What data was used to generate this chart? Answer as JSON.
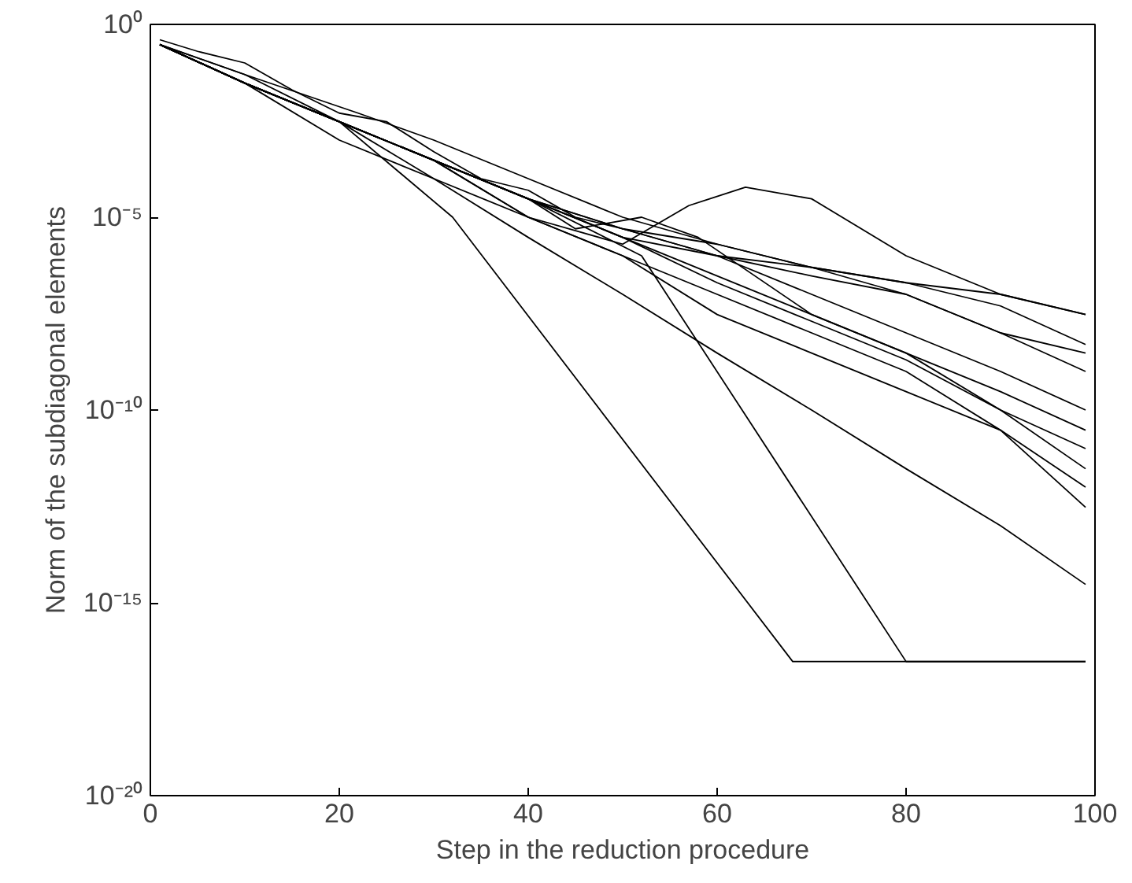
{
  "chart_data": {
    "type": "line",
    "xlabel": "Step in the reduction procedure",
    "ylabel": "Norm of the subdiagonal elements",
    "log": "y",
    "grid": false,
    "marker": "none",
    "line_style": "solid",
    "xlim": [
      0,
      100
    ],
    "xticks": [
      0,
      20,
      40,
      60,
      80,
      100
    ],
    "ylim": [
      1e-20,
      1
    ],
    "yticks": [
      {
        "value": 1e-20,
        "label": "10⁻²⁰"
      },
      {
        "value": 1e-15,
        "label": "10⁻¹⁵"
      },
      {
        "value": 1e-10,
        "label": "10⁻¹⁰"
      },
      {
        "value": 1e-05,
        "label": "10⁻⁵"
      },
      {
        "value": 1,
        "label": "10⁰"
      }
    ],
    "x": [
      1,
      10,
      20,
      30,
      40,
      50,
      60,
      70,
      80,
      90,
      99
    ],
    "series": [
      {
        "color": "#000000",
        "values": [
          0.3,
          0.03,
          0.003,
          0.0003,
          3e-05,
          3e-06,
          3e-07,
          3e-08,
          3e-09,
          1e-10,
          1e-11
        ]
      },
      {
        "color": "#000000",
        "values": [
          0.3,
          0.03,
          0.003,
          0.0003,
          1e-05,
          1e-06,
          1e-07,
          1e-08,
          1e-09,
          3e-11,
          1e-12
        ]
      },
      {
        "color": "#000000",
        "values": [
          0.3,
          0.03,
          0.003,
          0.0001,
          1e-05,
          1e-06,
          3e-08,
          3e-09,
          3e-10,
          3e-11,
          3e-13
        ]
      },
      {
        "color": "#000000",
        "values": [
          0.3,
          0.03,
          0.001,
          0.0001,
          3e-06,
          1e-07,
          3e-09,
          1e-10,
          3e-12,
          1e-13,
          3e-15
        ]
      },
      {
        "color": "#000000",
        "values": [
          0.3,
          0.03,
          0.003,
          0.0003,
          3e-05,
          3e-06,
          1e-06,
          1e-07,
          1e-08,
          1e-09,
          1e-10
        ]
      },
      {
        "color": "#000000",
        "values": [
          0.3,
          0.05,
          0.003,
          0.0003,
          3e-05,
          5e-06,
          1e-06,
          3e-07,
          1e-07,
          1e-08,
          1e-09
        ]
      },
      {
        "color": "#000000",
        "x": [
          1,
          5,
          10,
          15,
          20,
          25,
          30,
          35,
          40,
          45,
          50,
          60,
          70,
          80,
          90,
          99
        ],
        "values": [
          0.4,
          0.2,
          0.1,
          0.02,
          0.005,
          0.003,
          0.0005,
          0.0001,
          5e-05,
          1e-05,
          5e-06,
          2e-06,
          5e-07,
          2e-07,
          5e-08,
          5e-09
        ]
      },
      {
        "color": "#000000",
        "x": [
          1,
          10,
          20,
          30,
          40,
          50,
          57,
          63,
          70,
          80,
          90,
          99
        ],
        "values": [
          0.3,
          0.03,
          0.003,
          0.0003,
          1e-05,
          2e-06,
          2e-05,
          6e-05,
          3e-05,
          1e-06,
          1e-07,
          3e-08
        ]
      },
      {
        "color": "#000000",
        "x": [
          1,
          10,
          20,
          32,
          68,
          99
        ],
        "values": [
          0.3,
          0.03,
          0.003,
          1e-05,
          3e-17,
          3e-17
        ]
      },
      {
        "color": "#000000",
        "x": [
          1,
          10,
          20,
          30,
          40,
          52,
          80,
          99
        ],
        "values": [
          0.3,
          0.03,
          0.003,
          0.0003,
          3e-05,
          1e-06,
          3e-17,
          3e-17
        ]
      },
      {
        "color": "#000000",
        "x": [
          1,
          10,
          20,
          30,
          40,
          45,
          52,
          58,
          70,
          80,
          90,
          99
        ],
        "values": [
          0.3,
          0.03,
          0.003,
          0.0003,
          3e-05,
          5e-06,
          1e-05,
          3e-06,
          3e-08,
          3e-09,
          3e-10,
          3e-11
        ]
      },
      {
        "color": "#000000",
        "x": [
          1,
          10,
          22,
          30,
          40,
          50,
          60,
          70,
          80,
          90,
          99
        ],
        "values": [
          0.3,
          0.05,
          0.005,
          0.001,
          0.0001,
          1e-05,
          2e-06,
          5e-07,
          1e-07,
          1e-08,
          3e-09
        ]
      },
      {
        "color": "#000000",
        "values": [
          0.3,
          0.03,
          0.003,
          0.0003,
          3e-05,
          5e-06,
          1e-06,
          5e-07,
          2e-07,
          1e-07,
          3e-08
        ]
      },
      {
        "color": "#000000",
        "values": [
          0.3,
          0.03,
          0.003,
          0.0003,
          3e-05,
          3e-06,
          2e-07,
          2e-08,
          2e-09,
          1e-10,
          3e-12
        ]
      }
    ]
  }
}
